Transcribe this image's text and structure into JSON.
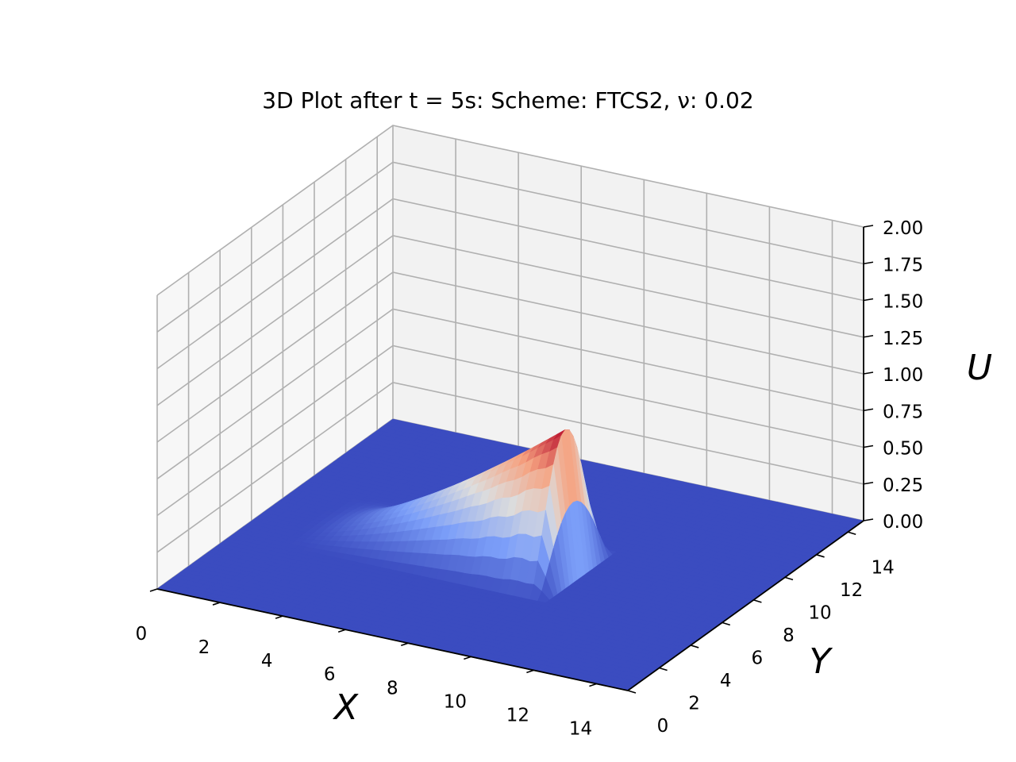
{
  "chart_data": {
    "type": "surface",
    "title": "3D Plot after t = 5s: Scheme: FTCS2, ν: 0.02",
    "xlabel": "X",
    "ylabel": "Y",
    "zlabel": "U",
    "xlim": [
      0,
      15
    ],
    "ylim": [
      0,
      15
    ],
    "zlim": [
      0,
      2
    ],
    "x_ticks": [
      "0",
      "2",
      "4",
      "6",
      "8",
      "10",
      "12",
      "14"
    ],
    "y_ticks": [
      "0",
      "2",
      "4",
      "6",
      "8",
      "10",
      "12",
      "14"
    ],
    "z_ticks": [
      "0.00",
      "0.25",
      "0.50",
      "0.75",
      "1.00",
      "1.25",
      "1.50",
      "1.75",
      "2.00"
    ],
    "grid": true,
    "colormap": "coolwarm",
    "surface_description": "Wave front of U rising from 0 to about 1.0 along x, with the peak near x ≈ 9.5 between y ≈ 5 and y ≈ 9; U = 0 elsewhere on the domain",
    "colors": {
      "low": "#3b4cc0",
      "mid": "#dddddd",
      "high": "#b40426",
      "pane_left": "#f7f7f7",
      "pane_back": "#f2f2f2",
      "pane_floor": "#ececec",
      "grid": "#b0b0b0"
    }
  }
}
